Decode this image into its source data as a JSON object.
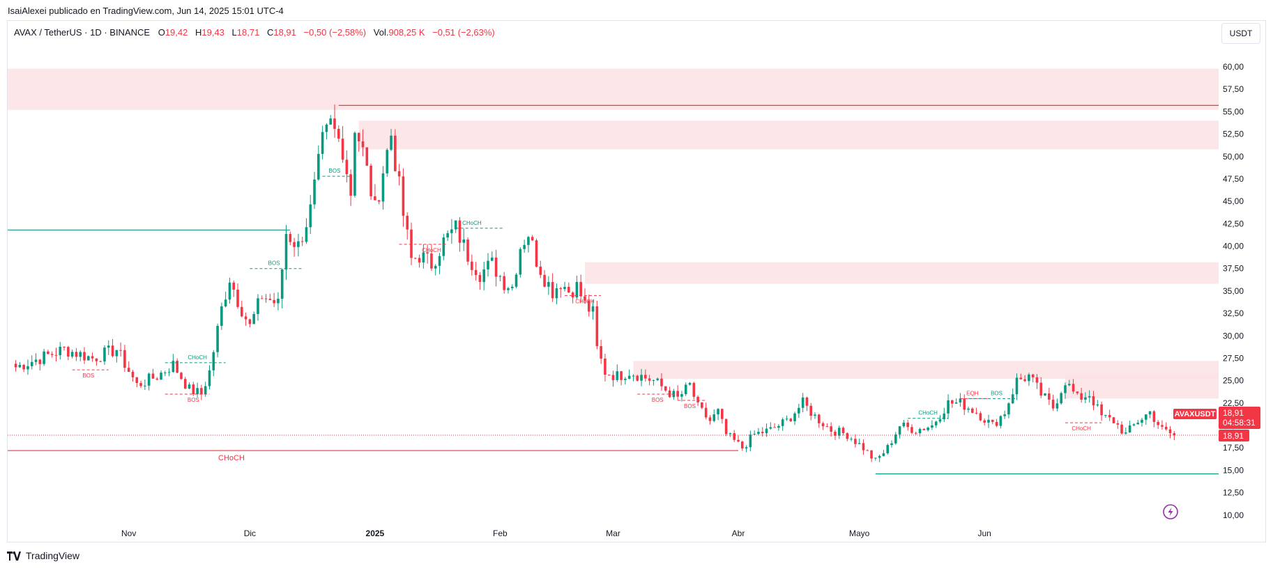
{
  "header": {
    "published": "IsaiAlexei publicado en TradingView.com, Jun 14, 2025 15:01 UTC-4"
  },
  "legend": {
    "symbol": "AVAX / TetherUS · 1D · BINANCE",
    "o_label": "O",
    "o_value": "19,42",
    "h_label": "H",
    "h_value": "19,43",
    "l_label": "L",
    "l_value": "18,71",
    "c_label": "C",
    "c_value": "18,91",
    "change": "−0,50 (−2,58%)",
    "vol_label": "Vol.",
    "vol_value": "908,25 K",
    "vol_change": "−0,51 (−2,63%)"
  },
  "currency_button": "USDT",
  "price_tag": {
    "symbol": "AVAXUSDT",
    "price": "18,91",
    "countdown": "04:58:31",
    "last": "18,91"
  },
  "footer": {
    "brand": "TradingView"
  },
  "colors": {
    "up": "#089981",
    "down": "#f23645",
    "zone": "#fde2e4",
    "accent": "#9c27b0"
  },
  "chart_data": {
    "type": "candlestick",
    "y_ticks": [
      10,
      12.5,
      15,
      17.5,
      20,
      22.5,
      25,
      27.5,
      30,
      32.5,
      35,
      37.5,
      40,
      42.5,
      45,
      47.5,
      50,
      52.5,
      55,
      57.5,
      60
    ],
    "y_tick_labels": [
      "10,00",
      "12,50",
      "15,00",
      "17,50",
      "20,00",
      "22,50",
      "25,00",
      "27,50",
      "30,00",
      "32,50",
      "35,00",
      "37,50",
      "40,00",
      "42,50",
      "45,00",
      "47,50",
      "50,00",
      "52,50",
      "55,00",
      "57,50",
      "60,00"
    ],
    "x_labels": [
      {
        "date": "2024-11-01",
        "label": "Nov",
        "bold": false
      },
      {
        "date": "2024-12-01",
        "label": "Dic",
        "bold": false
      },
      {
        "date": "2025-01-01",
        "label": "2025",
        "bold": true
      },
      {
        "date": "2025-02-01",
        "label": "Feb",
        "bold": false
      },
      {
        "date": "2025-03-01",
        "label": "Mar",
        "bold": false
      },
      {
        "date": "2025-04-01",
        "label": "Abr",
        "bold": false
      },
      {
        "date": "2025-05-01",
        "label": "Mayo",
        "bold": false
      },
      {
        "date": "2025-06-01",
        "label": "Jun",
        "bold": false
      }
    ],
    "close_path": [
      [
        "2024-10-04",
        26.5
      ],
      [
        "2024-10-10",
        27.5
      ],
      [
        "2024-10-16",
        28.5
      ],
      [
        "2024-10-23",
        27.5
      ],
      [
        "2024-10-29",
        28.5
      ],
      [
        "2024-11-03",
        24.5
      ],
      [
        "2024-11-08",
        25.5
      ],
      [
        "2024-11-12",
        26.8
      ],
      [
        "2024-11-16",
        24.0
      ],
      [
        "2024-11-19",
        23.5
      ],
      [
        "2024-11-21",
        26.0
      ],
      [
        "2024-11-24",
        33.0
      ],
      [
        "2024-11-26",
        36.5
      ],
      [
        "2024-11-28",
        34.0
      ],
      [
        "2024-12-01",
        31.0
      ],
      [
        "2024-12-04",
        34.5
      ],
      [
        "2024-12-08",
        33.5
      ],
      [
        "2024-12-10",
        41.5
      ],
      [
        "2024-12-13",
        40.0
      ],
      [
        "2024-12-16",
        44.0
      ],
      [
        "2024-12-19",
        51.5
      ],
      [
        "2024-12-21",
        53.5
      ],
      [
        "2024-12-24",
        51.0
      ],
      [
        "2024-12-26",
        46.0
      ],
      [
        "2024-12-27",
        53.5
      ],
      [
        "2024-12-29",
        50.5
      ],
      [
        "2025-01-01",
        44.0
      ],
      [
        "2025-01-03",
        48.5
      ],
      [
        "2025-01-05",
        52.5
      ],
      [
        "2025-01-08",
        43.5
      ],
      [
        "2025-01-10",
        38.5
      ],
      [
        "2025-01-12",
        39.0
      ],
      [
        "2025-01-15",
        38.0
      ],
      [
        "2025-01-18",
        40.5
      ],
      [
        "2025-01-21",
        42.0
      ],
      [
        "2025-01-24",
        39.0
      ],
      [
        "2025-01-27",
        37.0
      ],
      [
        "2025-01-30",
        38.0
      ],
      [
        "2025-02-02",
        36.0
      ],
      [
        "2025-02-04",
        35.5
      ],
      [
        "2025-02-06",
        40.0
      ],
      [
        "2025-02-08",
        41.5
      ],
      [
        "2025-02-10",
        38.5
      ],
      [
        "2025-02-12",
        36.5
      ],
      [
        "2025-02-14",
        35.0
      ],
      [
        "2025-02-16",
        36.0
      ],
      [
        "2025-02-18",
        35.0
      ],
      [
        "2025-02-20",
        35.5
      ],
      [
        "2025-02-22",
        33.5
      ],
      [
        "2025-02-24",
        32.5
      ],
      [
        "2025-02-25",
        28.5
      ],
      [
        "2025-02-27",
        26.0
      ],
      [
        "2025-03-02",
        25.5
      ],
      [
        "2025-03-05",
        26.0
      ],
      [
        "2025-03-08",
        25.5
      ],
      [
        "2025-03-11",
        25.0
      ],
      [
        "2025-03-14",
        24.0
      ],
      [
        "2025-03-17",
        23.0
      ],
      [
        "2025-03-20",
        24.5
      ],
      [
        "2025-03-22",
        22.0
      ],
      [
        "2025-03-25",
        20.5
      ],
      [
        "2025-03-27",
        21.5
      ],
      [
        "2025-03-29",
        19.0
      ],
      [
        "2025-04-02",
        17.5
      ],
      [
        "2025-04-05",
        19.0
      ],
      [
        "2025-04-09",
        19.5
      ],
      [
        "2025-04-13",
        20.5
      ],
      [
        "2025-04-17",
        22.5
      ],
      [
        "2025-04-20",
        21.0
      ],
      [
        "2025-04-24",
        19.5
      ],
      [
        "2025-04-28",
        19.0
      ],
      [
        "2025-05-02",
        17.5
      ],
      [
        "2025-05-05",
        16.0
      ],
      [
        "2025-05-08",
        17.5
      ],
      [
        "2025-05-11",
        20.0
      ],
      [
        "2025-05-15",
        19.5
      ],
      [
        "2025-05-19",
        20.0
      ],
      [
        "2025-05-23",
        22.5
      ],
      [
        "2025-05-26",
        22.5
      ],
      [
        "2025-05-30",
        21.5
      ],
      [
        "2025-06-03",
        20.0
      ],
      [
        "2025-06-06",
        21.5
      ],
      [
        "2025-06-09",
        25.0
      ],
      [
        "2025-06-12",
        25.5
      ],
      [
        "2025-06-15",
        23.5
      ],
      [
        "2025-06-18",
        22.0
      ],
      [
        "2025-06-21",
        25.0
      ],
      [
        "2025-06-24",
        23.0
      ],
      [
        "2025-06-27",
        23.5
      ],
      [
        "2025-06-30",
        21.0
      ],
      [
        "2025-07-03",
        20.5
      ],
      [
        "2025-07-06",
        19.0
      ],
      [
        "2025-07-09",
        20.5
      ],
      [
        "2025-07-12",
        21.5
      ],
      [
        "2025-07-15",
        19.5
      ],
      [
        "2025-07-18",
        18.91
      ]
    ],
    "zones": [
      {
        "from": "2024-10-02",
        "to": "2025-07-29",
        "low": 55.2,
        "high": 59.8
      },
      {
        "from": "2024-12-28",
        "to": "2025-07-29",
        "low": 50.8,
        "high": 54.0
      },
      {
        "from": "2025-02-22",
        "to": "2025-07-29",
        "low": 35.8,
        "high": 38.2
      },
      {
        "from": "2025-03-06",
        "to": "2025-07-29",
        "low": 25.2,
        "high": 27.2
      },
      {
        "from": "2025-06-21",
        "to": "2025-07-29",
        "low": 23.0,
        "high": 25.7
      }
    ],
    "lines": [
      {
        "from": "2024-12-23",
        "to": "2025-07-29",
        "y": 55.7,
        "color": "down"
      },
      {
        "from": "2024-10-02",
        "to": "2024-12-11",
        "y": 41.8,
        "color": "up"
      },
      {
        "from": "2024-10-02",
        "to": "2025-04-01",
        "y": 17.2,
        "color": "down"
      },
      {
        "from": "2025-05-05",
        "to": "2025-07-29",
        "y": 14.6,
        "color": "up"
      }
    ],
    "markers": [
      {
        "label": "BOS",
        "date": "2024-10-22",
        "y": 26.2,
        "color": "down",
        "from": "2024-10-18",
        "to": "2024-10-27",
        "above": false
      },
      {
        "label": "BOS",
        "date": "2024-11-17",
        "y": 23.5,
        "color": "down",
        "from": "2024-11-10",
        "to": "2024-11-21",
        "above": false
      },
      {
        "label": "CHoCH",
        "date": "2024-11-18",
        "y": 27.0,
        "color": "up",
        "from": "2024-11-10",
        "to": "2024-11-25",
        "above": true
      },
      {
        "label": "BOS",
        "date": "2024-12-07",
        "y": 37.5,
        "color": "up",
        "from": "2024-12-01",
        "to": "2024-12-14",
        "above": true
      },
      {
        "label": "BOS",
        "date": "2024-12-22",
        "y": 47.8,
        "color": "up",
        "from": "2024-12-19",
        "to": "2024-12-26",
        "above": true
      },
      {
        "label": "CHoCH",
        "date": "2025-01-15",
        "y": 40.2,
        "color": "down",
        "from": "2025-01-07",
        "to": "2025-01-19",
        "above": false
      },
      {
        "label": "CHoCH",
        "date": "2025-01-25",
        "y": 42.0,
        "color": "up",
        "from": "2025-01-21",
        "to": "2025-02-02",
        "above": true
      },
      {
        "label": "CHoCH",
        "date": "2025-02-22",
        "y": 34.5,
        "color": "down",
        "from": "2025-02-17",
        "to": "2025-02-26",
        "above": false
      },
      {
        "label": "BOS",
        "date": "2025-03-12",
        "y": 23.5,
        "color": "down",
        "from": "2025-03-07",
        "to": "2025-03-17",
        "above": false
      },
      {
        "label": "BOS",
        "date": "2025-03-20",
        "y": 22.8,
        "color": "down",
        "from": "2025-03-17",
        "to": "2025-03-24",
        "above": false
      },
      {
        "label": "CHoCH",
        "date": "2025-05-18",
        "y": 20.8,
        "color": "up",
        "from": "2025-05-13",
        "to": "2025-05-23",
        "above": true
      },
      {
        "label": "EQH",
        "date": "2025-05-29",
        "y": 23.0,
        "color": "down",
        "from": "2025-05-26",
        "to": "2025-06-02",
        "above": true
      },
      {
        "label": "BOS",
        "date": "2025-06-04",
        "y": 23.0,
        "color": "up",
        "from": "2025-05-28",
        "to": "2025-06-09",
        "above": true
      },
      {
        "label": "CHoCH",
        "date": "2025-06-25",
        "y": 20.3,
        "color": "down",
        "from": "2025-06-21",
        "to": "2025-06-30",
        "above": false
      }
    ]
  }
}
